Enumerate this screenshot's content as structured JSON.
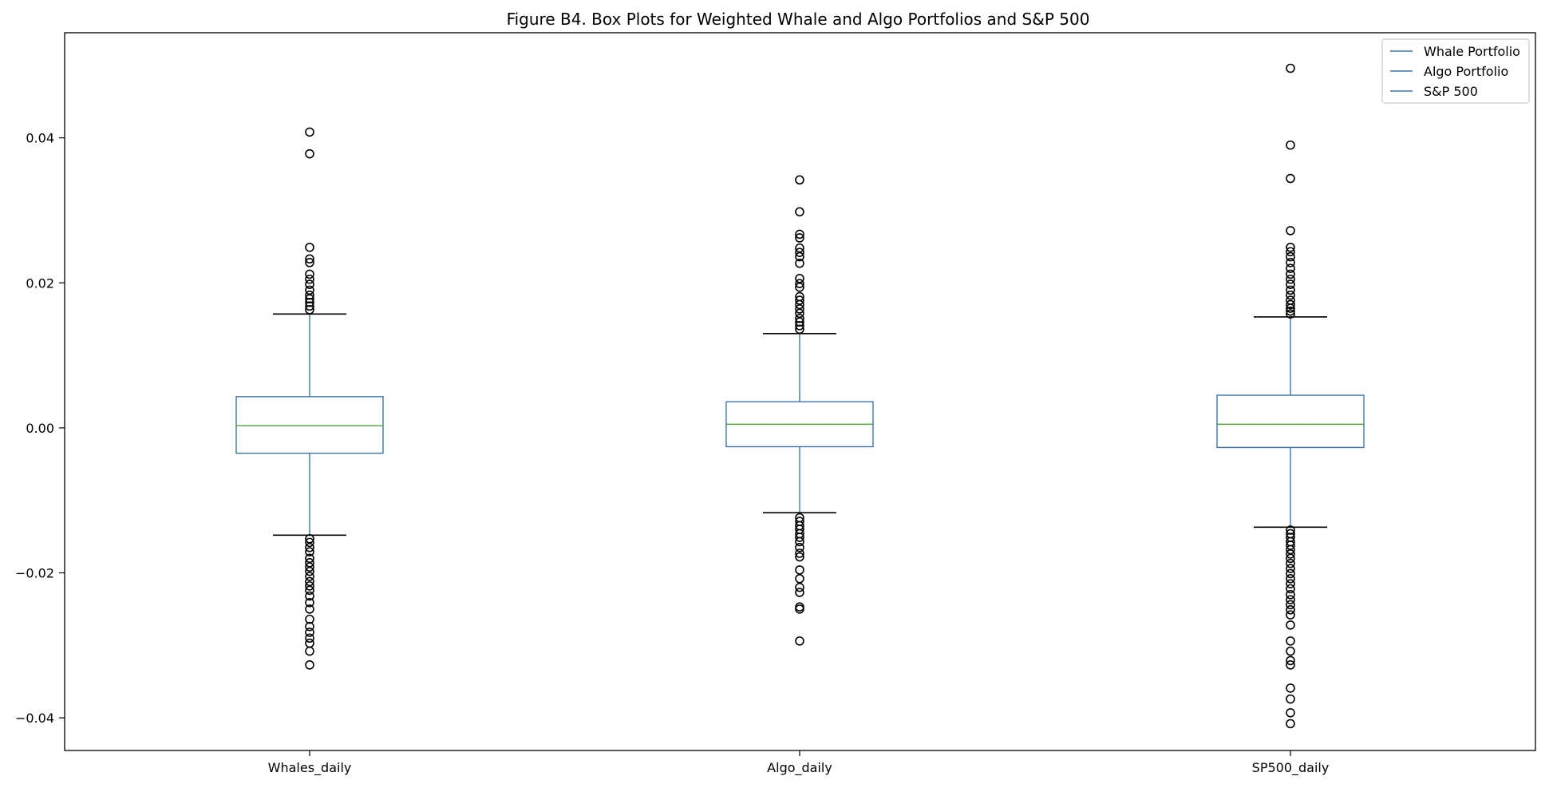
{
  "chart_data": {
    "type": "box",
    "title": "Figure B4. Box Plots for Weighted Whale and Algo Portfolios and S&P 500",
    "xlabel": "",
    "ylabel": "",
    "ylim": [
      -0.0445,
      0.0545
    ],
    "yticks": [
      -0.04,
      -0.02,
      0.0,
      0.02,
      0.04
    ],
    "ytick_labels": [
      "−0.04",
      "−0.02",
      "0.00",
      "0.02",
      "0.04"
    ],
    "categories": [
      "Whales_daily",
      "Algo_daily",
      "SP500_daily"
    ],
    "legend": {
      "placement": "top-right",
      "entries": [
        "Whale Portfolio",
        "Algo Portfolio",
        "S&P 500"
      ]
    },
    "grid": false,
    "colors": {
      "box": "#3b75af",
      "median": "#519e3e",
      "whisker_cap": "#000000",
      "flier": "#000000"
    },
    "boxes": [
      {
        "name": "Whales_daily",
        "q1": -0.0035,
        "median": 0.0003,
        "q3": 0.0043,
        "whisker_low": -0.0148,
        "whisker_high": 0.0157,
        "fliers": [
          0.0408,
          0.0378,
          0.0249,
          0.0233,
          0.0228,
          0.0212,
          0.0205,
          0.0198,
          0.019,
          0.0183,
          0.0178,
          0.0173,
          0.0168,
          0.0163,
          -0.0153,
          -0.0158,
          -0.0165,
          -0.0171,
          -0.018,
          -0.0186,
          -0.0192,
          -0.0198,
          -0.0205,
          -0.0212,
          -0.0218,
          -0.0224,
          -0.0232,
          -0.0241,
          -0.025,
          -0.0264,
          -0.0274,
          -0.0282,
          -0.029,
          -0.0297,
          -0.0308,
          -0.0327
        ]
      },
      {
        "name": "Algo_daily",
        "q1": -0.0026,
        "median": 0.0005,
        "q3": 0.0036,
        "whisker_low": -0.0117,
        "whisker_high": 0.013,
        "fliers": [
          0.0342,
          0.0298,
          0.0267,
          0.0262,
          0.0248,
          0.0242,
          0.0236,
          0.0227,
          0.0206,
          0.0199,
          0.0194,
          0.0181,
          0.0176,
          0.017,
          0.0164,
          0.0158,
          0.0151,
          0.0146,
          0.0141,
          0.0136,
          -0.0124,
          -0.0129,
          -0.0135,
          -0.014,
          -0.0146,
          -0.0151,
          -0.0157,
          -0.0165,
          -0.0173,
          -0.0178,
          -0.0196,
          -0.0208,
          -0.022,
          -0.0227,
          -0.0247,
          -0.025,
          -0.0294
        ]
      },
      {
        "name": "SP500_daily",
        "q1": -0.0027,
        "median": 0.0005,
        "q3": 0.0045,
        "whisker_low": -0.0137,
        "whisker_high": 0.0153,
        "fliers": [
          0.0496,
          0.039,
          0.0344,
          0.0272,
          0.0249,
          0.0243,
          0.0236,
          0.0228,
          0.022,
          0.0212,
          0.0205,
          0.0198,
          0.019,
          0.0183,
          0.0176,
          0.017,
          0.0165,
          0.0161,
          0.0157,
          -0.0141,
          -0.0146,
          -0.0151,
          -0.0157,
          -0.0162,
          -0.0168,
          -0.0174,
          -0.018,
          -0.0187,
          -0.0194,
          -0.0201,
          -0.0208,
          -0.0215,
          -0.0222,
          -0.023,
          -0.0237,
          -0.0244,
          -0.0251,
          -0.0258,
          -0.0272,
          -0.0294,
          -0.0308,
          -0.0321,
          -0.0327,
          -0.0359,
          -0.0374,
          -0.0393,
          -0.0408
        ]
      }
    ]
  }
}
